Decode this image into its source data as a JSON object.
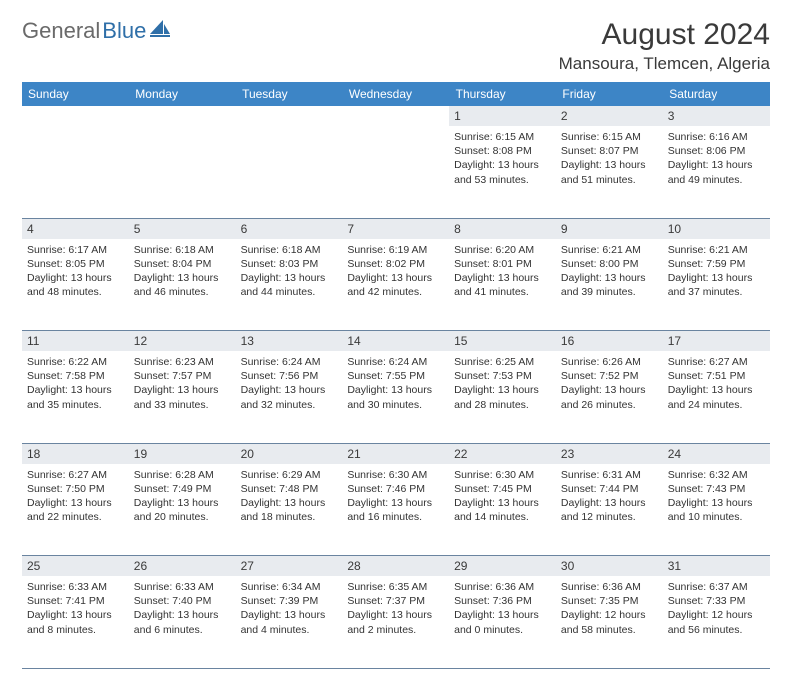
{
  "logo": {
    "text1": "General",
    "text2": "Blue"
  },
  "title": "August 2024",
  "location": "Mansoura, Tlemcen, Algeria",
  "headers": [
    "Sunday",
    "Monday",
    "Tuesday",
    "Wednesday",
    "Thursday",
    "Friday",
    "Saturday"
  ],
  "colors": {
    "header_bg": "#3d85c6",
    "header_fg": "#ffffff",
    "daynum_bg": "#e8ebef",
    "border": "#6a84a0",
    "logo_gray": "#6a6a6a",
    "logo_blue": "#2f6fa8"
  },
  "weeks": [
    [
      null,
      null,
      null,
      null,
      {
        "n": "1",
        "sr": "6:15 AM",
        "ss": "8:08 PM",
        "dl": "13 hours and 53 minutes."
      },
      {
        "n": "2",
        "sr": "6:15 AM",
        "ss": "8:07 PM",
        "dl": "13 hours and 51 minutes."
      },
      {
        "n": "3",
        "sr": "6:16 AM",
        "ss": "8:06 PM",
        "dl": "13 hours and 49 minutes."
      }
    ],
    [
      {
        "n": "4",
        "sr": "6:17 AM",
        "ss": "8:05 PM",
        "dl": "13 hours and 48 minutes."
      },
      {
        "n": "5",
        "sr": "6:18 AM",
        "ss": "8:04 PM",
        "dl": "13 hours and 46 minutes."
      },
      {
        "n": "6",
        "sr": "6:18 AM",
        "ss": "8:03 PM",
        "dl": "13 hours and 44 minutes."
      },
      {
        "n": "7",
        "sr": "6:19 AM",
        "ss": "8:02 PM",
        "dl": "13 hours and 42 minutes."
      },
      {
        "n": "8",
        "sr": "6:20 AM",
        "ss": "8:01 PM",
        "dl": "13 hours and 41 minutes."
      },
      {
        "n": "9",
        "sr": "6:21 AM",
        "ss": "8:00 PM",
        "dl": "13 hours and 39 minutes."
      },
      {
        "n": "10",
        "sr": "6:21 AM",
        "ss": "7:59 PM",
        "dl": "13 hours and 37 minutes."
      }
    ],
    [
      {
        "n": "11",
        "sr": "6:22 AM",
        "ss": "7:58 PM",
        "dl": "13 hours and 35 minutes."
      },
      {
        "n": "12",
        "sr": "6:23 AM",
        "ss": "7:57 PM",
        "dl": "13 hours and 33 minutes."
      },
      {
        "n": "13",
        "sr": "6:24 AM",
        "ss": "7:56 PM",
        "dl": "13 hours and 32 minutes."
      },
      {
        "n": "14",
        "sr": "6:24 AM",
        "ss": "7:55 PM",
        "dl": "13 hours and 30 minutes."
      },
      {
        "n": "15",
        "sr": "6:25 AM",
        "ss": "7:53 PM",
        "dl": "13 hours and 28 minutes."
      },
      {
        "n": "16",
        "sr": "6:26 AM",
        "ss": "7:52 PM",
        "dl": "13 hours and 26 minutes."
      },
      {
        "n": "17",
        "sr": "6:27 AM",
        "ss": "7:51 PM",
        "dl": "13 hours and 24 minutes."
      }
    ],
    [
      {
        "n": "18",
        "sr": "6:27 AM",
        "ss": "7:50 PM",
        "dl": "13 hours and 22 minutes."
      },
      {
        "n": "19",
        "sr": "6:28 AM",
        "ss": "7:49 PM",
        "dl": "13 hours and 20 minutes."
      },
      {
        "n": "20",
        "sr": "6:29 AM",
        "ss": "7:48 PM",
        "dl": "13 hours and 18 minutes."
      },
      {
        "n": "21",
        "sr": "6:30 AM",
        "ss": "7:46 PM",
        "dl": "13 hours and 16 minutes."
      },
      {
        "n": "22",
        "sr": "6:30 AM",
        "ss": "7:45 PM",
        "dl": "13 hours and 14 minutes."
      },
      {
        "n": "23",
        "sr": "6:31 AM",
        "ss": "7:44 PM",
        "dl": "13 hours and 12 minutes."
      },
      {
        "n": "24",
        "sr": "6:32 AM",
        "ss": "7:43 PM",
        "dl": "13 hours and 10 minutes."
      }
    ],
    [
      {
        "n": "25",
        "sr": "6:33 AM",
        "ss": "7:41 PM",
        "dl": "13 hours and 8 minutes."
      },
      {
        "n": "26",
        "sr": "6:33 AM",
        "ss": "7:40 PM",
        "dl": "13 hours and 6 minutes."
      },
      {
        "n": "27",
        "sr": "6:34 AM",
        "ss": "7:39 PM",
        "dl": "13 hours and 4 minutes."
      },
      {
        "n": "28",
        "sr": "6:35 AM",
        "ss": "7:37 PM",
        "dl": "13 hours and 2 minutes."
      },
      {
        "n": "29",
        "sr": "6:36 AM",
        "ss": "7:36 PM",
        "dl": "13 hours and 0 minutes."
      },
      {
        "n": "30",
        "sr": "6:36 AM",
        "ss": "7:35 PM",
        "dl": "12 hours and 58 minutes."
      },
      {
        "n": "31",
        "sr": "6:37 AM",
        "ss": "7:33 PM",
        "dl": "12 hours and 56 minutes."
      }
    ]
  ],
  "labels": {
    "sunrise": "Sunrise:",
    "sunset": "Sunset:",
    "daylight": "Daylight:"
  }
}
